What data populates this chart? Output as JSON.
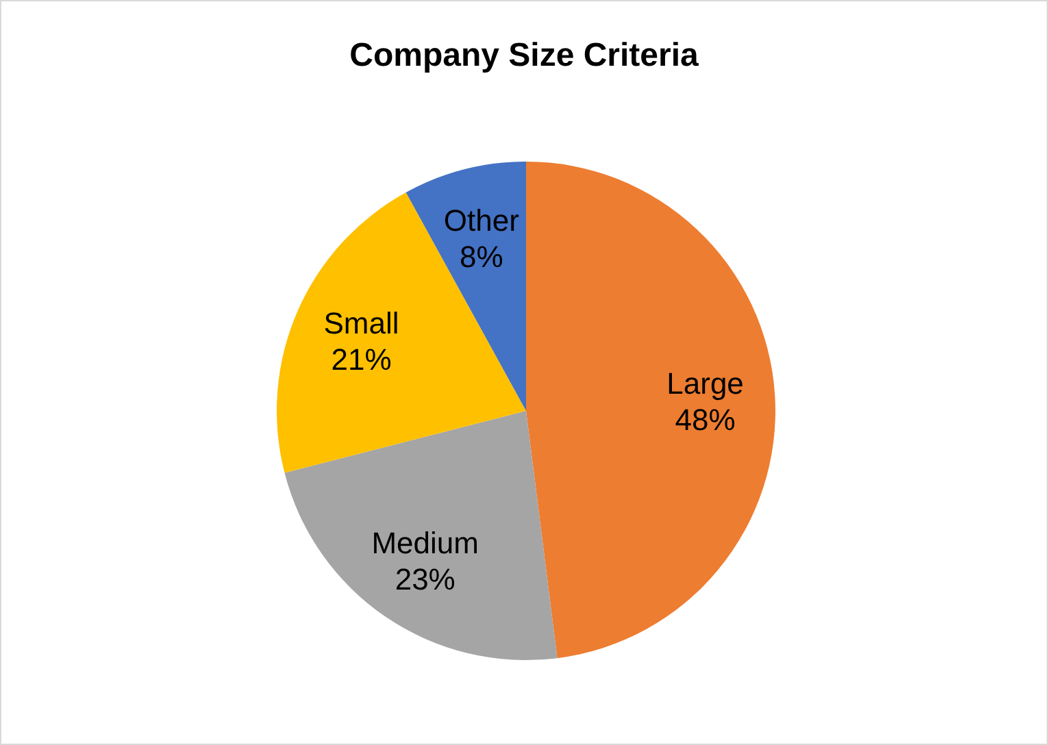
{
  "chart_data": {
    "type": "pie",
    "title": "Company Size Criteria",
    "categories": [
      "Large",
      "Medium",
      "Small",
      "Other"
    ],
    "values": [
      48,
      23,
      21,
      8
    ],
    "colors": [
      "#ed7d31",
      "#a5a5a5",
      "#ffc000",
      "#4472c4"
    ],
    "value_labels": [
      "48%",
      "23%",
      "21%",
      "8%"
    ],
    "legend": false
  }
}
